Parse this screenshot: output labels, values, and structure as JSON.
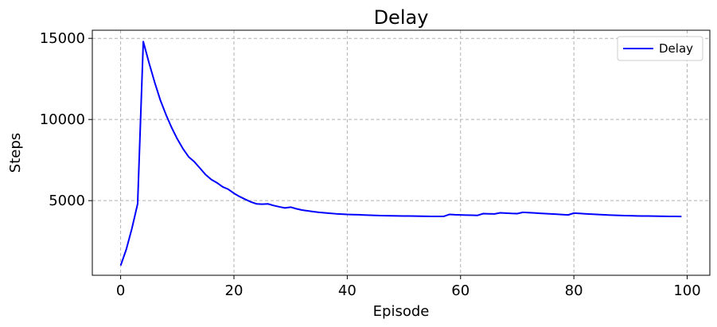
{
  "chart_data": {
    "type": "line",
    "title": "Delay",
    "xlabel": "Episode",
    "ylabel": "Steps",
    "xlim": [
      -5,
      104
    ],
    "ylim": [
      400,
      15500
    ],
    "xticks": [
      0,
      20,
      40,
      60,
      80,
      100
    ],
    "yticks": [
      5000,
      10000,
      15000
    ],
    "grid": true,
    "legend": {
      "position": "top-right",
      "entries": [
        "Delay"
      ]
    },
    "colors": {
      "series": "#0000ff",
      "grid": "#b0b0b0",
      "axis": "#000000"
    },
    "series": [
      {
        "name": "Delay",
        "color": "#0000ff",
        "x": [
          0,
          1,
          2,
          3,
          4,
          5,
          6,
          7,
          8,
          9,
          10,
          11,
          12,
          13,
          14,
          15,
          16,
          17,
          18,
          19,
          20,
          21,
          22,
          23,
          24,
          25,
          26,
          27,
          28,
          29,
          30,
          31,
          32,
          33,
          34,
          35,
          36,
          37,
          38,
          39,
          40,
          41,
          42,
          43,
          44,
          45,
          46,
          47,
          48,
          49,
          50,
          51,
          52,
          53,
          54,
          55,
          56,
          57,
          58,
          59,
          60,
          61,
          62,
          63,
          64,
          65,
          66,
          67,
          68,
          69,
          70,
          71,
          72,
          73,
          74,
          75,
          76,
          77,
          78,
          79,
          80,
          81,
          82,
          83,
          84,
          85,
          86,
          87,
          88,
          89,
          90,
          91,
          92,
          93,
          94,
          95,
          96,
          97,
          98,
          99
        ],
        "y": [
          1000,
          2000,
          3300,
          4800,
          14800,
          13500,
          12300,
          11200,
          10300,
          9500,
          8800,
          8200,
          7700,
          7400,
          7000,
          6600,
          6300,
          6100,
          5850,
          5700,
          5450,
          5250,
          5080,
          4920,
          4800,
          4780,
          4800,
          4700,
          4620,
          4550,
          4600,
          4500,
          4420,
          4370,
          4320,
          4280,
          4250,
          4220,
          4190,
          4170,
          4150,
          4140,
          4130,
          4115,
          4100,
          4090,
          4080,
          4070,
          4065,
          4060,
          4055,
          4050,
          4045,
          4040,
          4035,
          4030,
          4025,
          4025,
          4150,
          4130,
          4120,
          4110,
          4100,
          4090,
          4200,
          4190,
          4180,
          4250,
          4230,
          4210,
          4200,
          4280,
          4260,
          4240,
          4220,
          4200,
          4180,
          4160,
          4140,
          4120,
          4230,
          4210,
          4190,
          4170,
          4150,
          4130,
          4115,
          4100,
          4090,
          4080,
          4070,
          4060,
          4055,
          4050,
          4045,
          4040,
          4035,
          4030,
          4025,
          4020
        ]
      }
    ]
  }
}
